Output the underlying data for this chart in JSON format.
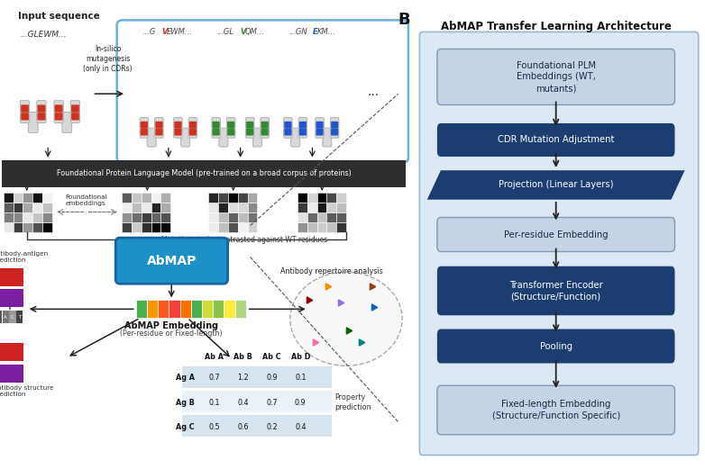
{
  "title": "AbMAP Transfer Learning Architecture",
  "background_color": "#ffffff",
  "plm_bar_text": "Foundational Protein Language Model (pre-trained on a broad corpus of proteins)",
  "abmap_box_color": "#2196c4",
  "embedding_colors_row1": [
    "#4caf50",
    "#ff9800",
    "#ff5722",
    "#f44336",
    "#ff6f00",
    "#4caf50",
    "#cddc39",
    "#8bc34a",
    "#ffeb3b",
    "#aed581"
  ],
  "table_headers": [
    "",
    "Ab A",
    "Ab B",
    "Ab C",
    "Ab D"
  ],
  "table_rows": [
    [
      "Ag A",
      "0.7",
      "1.2",
      "0.9",
      "0.1"
    ],
    [
      "Ag B",
      "0.1",
      "0.4",
      "0.7",
      "0.9"
    ],
    [
      "Ag C",
      "0.5",
      "0.6",
      "0.2",
      "0.4"
    ]
  ],
  "flow_boxes": [
    {
      "label": "Foundational PLM\nEmbeddings (WT,\nmutants)",
      "style": "light"
    },
    {
      "label": "CDR Mutation Adjustment",
      "style": "dark"
    },
    {
      "label": "Projection (Linear Layers)",
      "style": "dark_para"
    },
    {
      "label": "Per-residue Embedding",
      "style": "light"
    },
    {
      "label": "Transformer Encoder\n(Structure/Function)",
      "style": "dark"
    },
    {
      "label": "Pooling",
      "style": "dark"
    },
    {
      "label": "Fixed-length Embedding\n(Structure/Function Specific)",
      "style": "light"
    }
  ],
  "mut_label_parts": [
    [
      [
        "...G",
        "#444444"
      ],
      [
        "V",
        "#cc3322"
      ],
      [
        "EWM...",
        "#444444"
      ]
    ],
    [
      [
        "...GL",
        "#444444"
      ],
      [
        "V",
        "#338833"
      ],
      [
        "QM...",
        "#444444"
      ]
    ],
    [
      [
        "...GN",
        "#444444"
      ],
      [
        "E",
        "#2255cc"
      ],
      [
        "KM...",
        "#444444"
      ]
    ]
  ],
  "mut_colors": [
    "#cc3322",
    "#338833",
    "#2255cc"
  ]
}
